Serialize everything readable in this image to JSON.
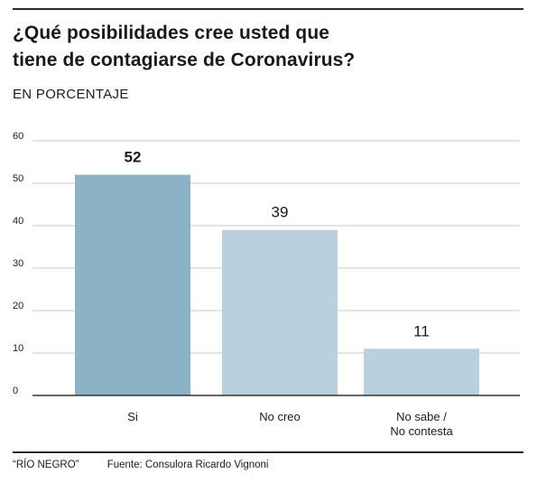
{
  "header": {
    "title_line1": "¿Qué posibilidades cree usted que",
    "title_line2": "tiene de contagiarse de Coronavirus?",
    "subtitle": "EN PORCENTAJE"
  },
  "footer": {
    "credit": "“RÍO NEGRO”",
    "source": "Fuente: Consulora Ricardo Vignoni"
  },
  "chart_data": {
    "type": "bar",
    "title": "¿Qué posibilidades cree usted que tiene de contagiarse de Coronavirus?",
    "subtitle": "EN PORCENTAJE",
    "categories": [
      [
        "Si"
      ],
      [
        "No creo"
      ],
      [
        "No sabe /",
        "No contesta"
      ]
    ],
    "values": [
      52,
      39,
      11
    ],
    "value_labels": [
      "52",
      "39",
      "11"
    ],
    "highlighted_index": 0,
    "yticks": [
      0,
      10,
      20,
      30,
      40,
      50,
      60
    ],
    "ylim": [
      0,
      60
    ],
    "grid": true,
    "legend": "none",
    "colors": {
      "highlight_bar": "#8cb2c6",
      "bar": "#b9d1df",
      "gridline": "#c8c8c8",
      "axis": "#333333",
      "text": "#1a1a1a"
    }
  }
}
